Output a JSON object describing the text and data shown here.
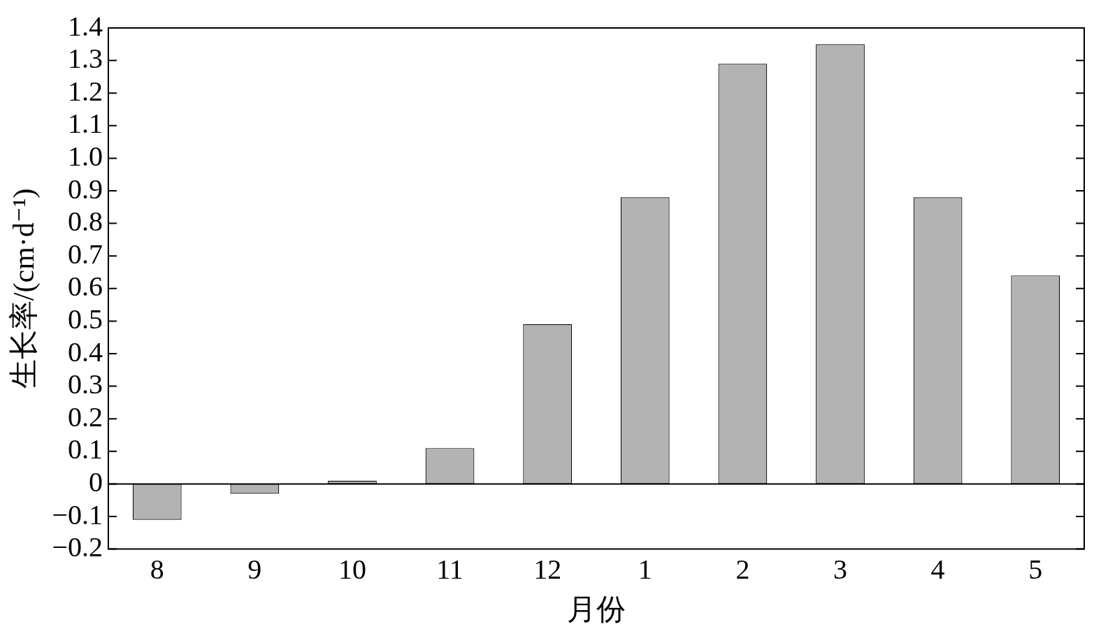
{
  "chart_data": {
    "type": "bar",
    "xlabel": "月份",
    "ylabel": "生长率/(cm·d⁻¹)",
    "categories": [
      "8",
      "9",
      "10",
      "11",
      "12",
      "1",
      "2",
      "3",
      "4",
      "5"
    ],
    "values": [
      -0.11,
      -0.03,
      0.01,
      0.11,
      0.49,
      0.88,
      1.29,
      1.35,
      0.88,
      0.64
    ],
    "color": "#b3b3b3",
    "ylim": [
      -0.2,
      1.4
    ],
    "yticks": [
      {
        "value": -0.2,
        "label": "−0.2"
      },
      {
        "value": -0.1,
        "label": "−0.1"
      },
      0,
      0.1,
      0.2,
      0.3,
      0.4,
      0.5,
      0.6,
      0.7,
      0.8,
      0.9,
      {
        "value": 1,
        "label": "1.0"
      },
      1.1,
      1.2,
      1.3,
      1.4
    ],
    "ref_lines": [
      {
        "axis": "y",
        "value": 0,
        "color": "#000000"
      }
    ],
    "grid": false,
    "legend": false
  }
}
